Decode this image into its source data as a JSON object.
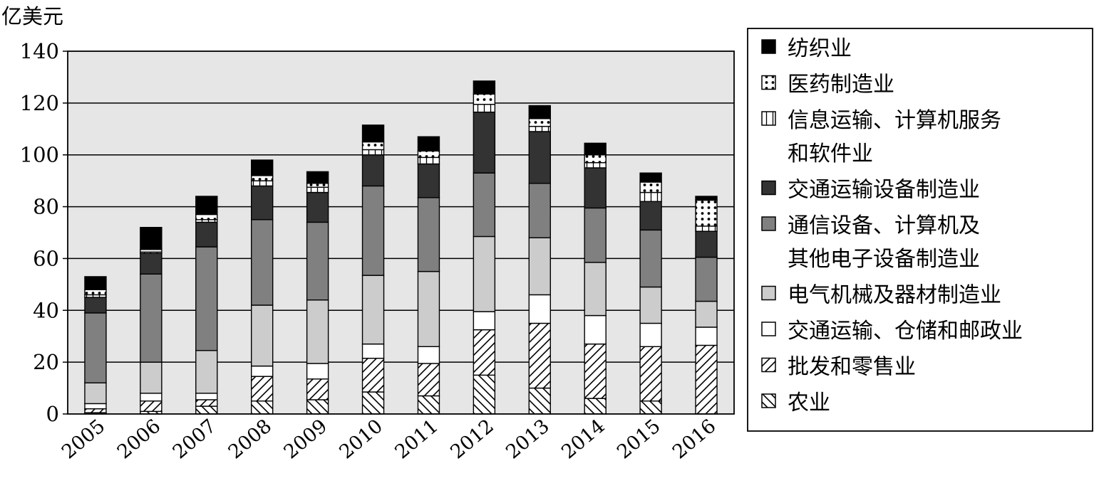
{
  "chart_data": {
    "type": "bar",
    "stacked": true,
    "title": "",
    "unit_label": "亿美元",
    "xlabel": "",
    "ylabel": "亿美元",
    "ylim": [
      0,
      140
    ],
    "yticks": [
      0,
      20,
      40,
      60,
      80,
      100,
      120,
      140
    ],
    "grid": "horizontal",
    "legend_position": "right",
    "categories": [
      "2005",
      "2006",
      "2007",
      "2008",
      "2009",
      "2010",
      "2011",
      "2012",
      "2013",
      "2014",
      "2015",
      "2016"
    ],
    "series": [
      {
        "name": "农业",
        "pattern": "backslash-hatch",
        "color": "#ffffff",
        "values": [
          0.5,
          1,
          3,
          5,
          5.5,
          8.5,
          7,
          15,
          10,
          6,
          5,
          0
        ]
      },
      {
        "name": "批发和零售业",
        "pattern": "slash-hatch",
        "color": "#ffffff",
        "values": [
          1.5,
          4,
          2.5,
          9.5,
          8,
          13,
          12.5,
          17.5,
          25,
          21,
          21,
          26.5
        ]
      },
      {
        "name": "交通运输、仓储和邮政业",
        "pattern": "solid",
        "color": "#ffffff",
        "values": [
          2,
          3,
          2.5,
          4,
          6,
          5.5,
          6.5,
          7,
          11,
          11,
          9,
          7
        ]
      },
      {
        "name": "电气机械及器材制造业",
        "pattern": "solid",
        "color": "#cccccc",
        "values": [
          8,
          12,
          16.5,
          23.5,
          24.5,
          26.5,
          29,
          29,
          22,
          20.5,
          14,
          10
        ]
      },
      {
        "name": "通信设备、计算机及\n其他电子设备制造业",
        "pattern": "solid",
        "color": "#808080",
        "values": [
          27,
          34,
          40,
          33,
          30,
          34.5,
          28.5,
          24.5,
          21,
          21,
          22,
          17
        ]
      },
      {
        "name": "交通运输设备制造业",
        "pattern": "solid",
        "color": "#333333",
        "values": [
          6,
          8,
          9.5,
          13,
          11.5,
          12,
          13,
          23.5,
          20,
          15.5,
          11,
          10
        ]
      },
      {
        "name": "信息运输、计算机服务\n和软件业",
        "pattern": "grid",
        "color": "#ffffff",
        "values": [
          1,
          0.5,
          1,
          2,
          2,
          2,
          2.5,
          3,
          2,
          2,
          3.5,
          2
        ]
      },
      {
        "name": "医药制造业",
        "pattern": "dots",
        "color": "#ffffff",
        "values": [
          2,
          1,
          2,
          2,
          1.5,
          3,
          2.5,
          4,
          3,
          3,
          4,
          10
        ]
      },
      {
        "name": "纺织业",
        "pattern": "solid",
        "color": "#000000",
        "values": [
          5,
          8.5,
          7,
          6,
          4.5,
          6.5,
          5.5,
          5,
          5,
          4.5,
          3.5,
          1.5
        ]
      }
    ],
    "legend_order": [
      "纺织业",
      "医药制造业",
      "信息运输、计算机服务\n和软件业",
      "交通运输设备制造业",
      "通信设备、计算机及\n其他电子设备制造业",
      "电气机械及器材制造业",
      "交通运输、仓储和邮政业",
      "批发和零售业",
      "农业"
    ]
  }
}
